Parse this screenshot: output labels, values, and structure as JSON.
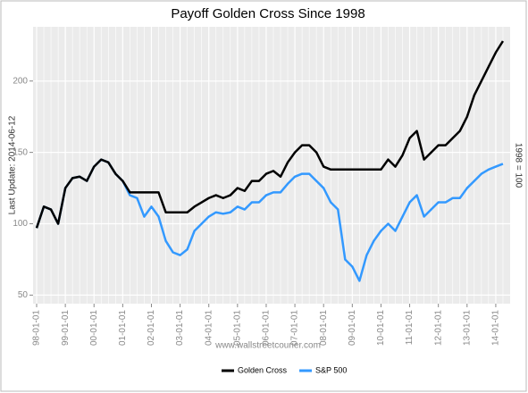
{
  "chart_data": {
    "type": "line",
    "title": "Payoff Golden Cross Since 1998",
    "y_label": "Last Update: 2014-06-12",
    "y2_label": "1998 = 100",
    "watermark": "www.wallstreetcourier.com",
    "x": [
      "98-01-01",
      null,
      null,
      null,
      "99-01-01",
      null,
      null,
      null,
      "00-01-01",
      null,
      null,
      null,
      "01-01-01",
      null,
      null,
      null,
      "02-01-01",
      null,
      null,
      null,
      "03-01-01",
      null,
      null,
      null,
      "04-01-01",
      null,
      null,
      null,
      "05-01-01",
      null,
      null,
      null,
      "06-01-01",
      null,
      null,
      null,
      "07-01-01",
      null,
      null,
      null,
      "08-01-01",
      null,
      null,
      null,
      "09-01-01",
      null,
      null,
      null,
      "10-01-01",
      null,
      null,
      null,
      "11-01-01",
      null,
      null,
      null,
      "12-01-01",
      null,
      null,
      null,
      "13-01-01",
      null,
      null,
      null,
      "14-01-01",
      null
    ],
    "series": [
      {
        "name": "Golden Cross",
        "color": "#000000",
        "values": [
          97,
          112,
          110,
          100,
          125,
          132,
          133,
          130,
          140,
          145,
          143,
          135,
          130,
          122,
          122,
          122,
          122,
          122,
          108,
          108,
          108,
          108,
          112,
          115,
          118,
          120,
          118,
          120,
          125,
          123,
          130,
          130,
          135,
          137,
          133,
          143,
          150,
          155,
          155,
          150,
          140,
          138,
          138,
          138,
          138,
          138,
          138,
          138,
          138,
          145,
          140,
          148,
          160,
          165,
          145,
          150,
          155,
          155,
          160,
          165,
          175,
          190,
          200,
          210,
          220,
          228
        ]
      },
      {
        "name": "S&P 500",
        "color": "#3399ff",
        "values": [
          97,
          112,
          110,
          100,
          125,
          132,
          133,
          130,
          140,
          145,
          143,
          135,
          130,
          120,
          118,
          105,
          112,
          105,
          88,
          80,
          78,
          82,
          95,
          100,
          105,
          108,
          107,
          108,
          112,
          110,
          115,
          115,
          120,
          122,
          122,
          128,
          133,
          135,
          135,
          130,
          125,
          115,
          110,
          75,
          70,
          60,
          78,
          88,
          95,
          100,
          95,
          105,
          115,
          120,
          105,
          110,
          115,
          115,
          118,
          118,
          125,
          130,
          135,
          138,
          140,
          142
        ]
      }
    ],
    "ylim": [
      44,
      238
    ],
    "yticks": [
      50,
      100,
      150,
      200
    ],
    "grid": true
  }
}
